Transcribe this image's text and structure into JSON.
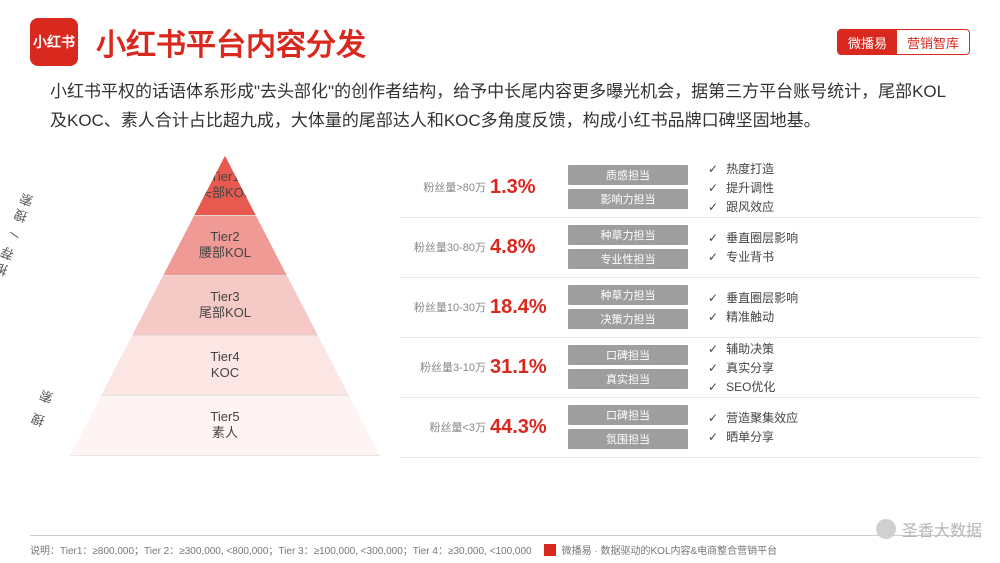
{
  "header": {
    "logo_text": "小红书",
    "title": "小红书平台内容分发",
    "badge_left": "微播易",
    "badge_right": "营销智库"
  },
  "description": "小红书平权的话语体系形成\"去头部化\"的创作者结构，给予中长尾内容更多曝光机会，据第三方平台账号统计，尾部KOL及KOC、素人合计占比超九成，大体量的尾部达人和KOC多角度反馈，构成小红书品牌口碑坚固地基。",
  "pyramid": {
    "side_label_upper": "关注 / 推荐 / 搜索",
    "side_label_lower": "搜 索",
    "colors": {
      "top": "#e85a4f",
      "t2": "#ef9a94",
      "t3": "#f5c9c5",
      "t4": "#fbe6e4",
      "t5": "#fdf4f3",
      "border": "#e0e0e0"
    },
    "tiers": [
      {
        "name": "Tier1",
        "sub": "头部KOL",
        "range": "粉丝量>80万",
        "pct": "1.3%",
        "tags": [
          "质感担当",
          "影响力担当"
        ],
        "features": [
          "热度打造",
          "提升调性",
          "跟风效应"
        ]
      },
      {
        "name": "Tier2",
        "sub": "腰部KOL",
        "range": "粉丝量30-80万",
        "pct": "4.8%",
        "tags": [
          "种草力担当",
          "专业性担当"
        ],
        "features": [
          "垂直圈层影响",
          "专业背书"
        ]
      },
      {
        "name": "Tier3",
        "sub": "尾部KOL",
        "range": "粉丝量10-30万",
        "pct": "18.4%",
        "tags": [
          "种草力担当",
          "决策力担当"
        ],
        "features": [
          "垂直圈层影响",
          "精准触动"
        ]
      },
      {
        "name": "Tier4",
        "sub": "KOC",
        "range": "粉丝量3-10万",
        "pct": "31.1%",
        "tags": [
          "口碑担当",
          "真实担当"
        ],
        "features": [
          "辅助决策",
          "真实分享",
          "SEO优化"
        ]
      },
      {
        "name": "Tier5",
        "sub": "素人",
        "range": "粉丝量<3万",
        "pct": "44.3%",
        "tags": [
          "口碑担当",
          "氛围担当"
        ],
        "features": [
          "营造聚集效应",
          "晒单分享"
        ]
      }
    ]
  },
  "footer": {
    "note": "说明：Tier1：≥800,000；Tier 2：≥300,000, <800,000；Tier 3：≥100,000, <300,000；Tier 4：≥30,000, <100,000",
    "source": "微播易 · 数据驱动的KOL内容&电商整合营销平台"
  },
  "watermark": "圣香大数据",
  "style": {
    "accent": "#d9281e",
    "tag_bg": "#9e9e9e",
    "text": "#333333"
  }
}
